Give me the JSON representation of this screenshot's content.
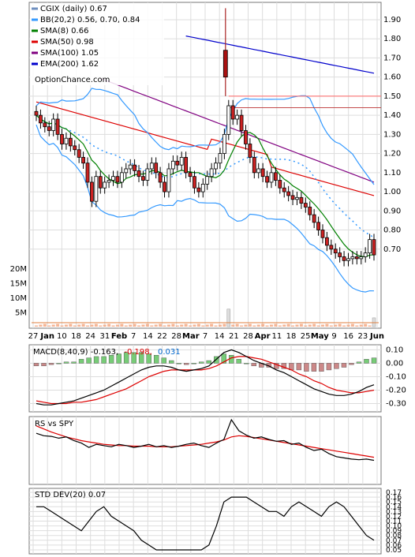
{
  "chart_data": [
    {
      "type": "candlestick",
      "title": "CGIX (daily) 0.67",
      "watermark": "OptionChance.com",
      "legend": [
        {
          "label": "CGIX (daily) 0.67",
          "color": "#6f8fbf"
        },
        {
          "label": "BB(20,2) 0.56, 0.70, 0.84",
          "color": "#3399ff"
        },
        {
          "label": "SMA(8) 0.66",
          "color": "#008000"
        },
        {
          "label": "SMA(50) 0.98",
          "color": "#dd0000"
        },
        {
          "label": "SMA(100) 1.05",
          "color": "#800080"
        },
        {
          "label": "EMA(200) 1.62",
          "color": "#0000cc"
        }
      ],
      "legend_placement": "top-left",
      "y_ticks": [
        "1.90",
        "1.80",
        "1.70",
        "1.60",
        "1.50",
        "1.40",
        "1.30",
        "1.20",
        "1.10",
        "1.00",
        "0.90",
        "0.80",
        "0.70"
      ],
      "ylim": [
        0.6,
        1.97
      ],
      "volume_ticks": [
        "20M",
        "15M",
        "10M",
        "5M"
      ],
      "x_ticks": [
        "27",
        "Jan",
        "10",
        "18",
        "24",
        "31",
        "Feb",
        "7",
        "14",
        "22",
        "28",
        "Mar",
        "7",
        "14",
        "21",
        "28",
        "Apr",
        "11",
        "18",
        "25",
        "May",
        "9",
        "16",
        "23",
        "Jun"
      ],
      "close": [
        1.4,
        1.36,
        1.34,
        1.32,
        1.38,
        1.3,
        1.25,
        1.28,
        1.24,
        1.22,
        1.18,
        1.15,
        1.05,
        0.95,
        1.08,
        1.02,
        1.05,
        1.06,
        1.08,
        1.05,
        1.1,
        1.12,
        1.14,
        1.11,
        1.08,
        1.06,
        1.12,
        1.15,
        1.1,
        1.05,
        1.0,
        1.12,
        1.16,
        1.14,
        1.18,
        1.1,
        1.08,
        1.02,
        1.0,
        1.04,
        1.08,
        1.12,
        1.15,
        1.2,
        1.3,
        1.45,
        1.38,
        1.4,
        1.32,
        1.25,
        1.18,
        1.1,
        1.12,
        1.08,
        1.05,
        1.1,
        1.06,
        1.02,
        1.0,
        0.98,
        0.96,
        0.97,
        0.94,
        0.92,
        0.88,
        0.84,
        0.8,
        0.76,
        0.72,
        0.7,
        0.68,
        0.66,
        0.64,
        0.65,
        0.66,
        0.65,
        0.66,
        0.68,
        0.75,
        0.67
      ],
      "volume_spikes_M": [
        {
          "date": "Mar 28",
          "value": 6.0
        },
        {
          "date": "Jun",
          "value": 3.0
        }
      ],
      "spike_annotation": {
        "high": 1.96,
        "low": 1.5,
        "horizontal_line_level": 1.5
      }
    },
    {
      "type": "line",
      "title": "MACD(8,40,9) -0.163, -0.198, 0.031",
      "legend": [
        {
          "label": "MACD(8,40,9) -0.163,",
          "color": "#000000"
        },
        {
          "label": "-0.198,",
          "color": "#dd0000"
        },
        {
          "label": "0.031",
          "color": "#0066cc"
        }
      ],
      "y_ticks": [
        "0.10",
        "0.00",
        "-0.10",
        "-0.20",
        "-0.30"
      ],
      "ylim": [
        -0.35,
        0.12
      ],
      "series": [
        {
          "name": "MACD",
          "values": [
            -0.3,
            -0.31,
            -0.31,
            -0.3,
            -0.29,
            -0.28,
            -0.26,
            -0.24,
            -0.22,
            -0.2,
            -0.17,
            -0.14,
            -0.11,
            -0.08,
            -0.05,
            -0.03,
            -0.02,
            -0.02,
            -0.03,
            -0.05,
            -0.06,
            -0.05,
            -0.04,
            -0.02,
            0.03,
            0.08,
            0.1,
            0.08,
            0.05,
            0.02,
            0.0,
            -0.02,
            -0.05,
            -0.07,
            -0.1,
            -0.13,
            -0.16,
            -0.19,
            -0.21,
            -0.23,
            -0.24,
            -0.24,
            -0.23,
            -0.21,
            -0.18,
            -0.16
          ]
        },
        {
          "name": "Signal",
          "values": [
            -0.28,
            -0.29,
            -0.3,
            -0.3,
            -0.3,
            -0.29,
            -0.29,
            -0.28,
            -0.27,
            -0.25,
            -0.23,
            -0.21,
            -0.19,
            -0.16,
            -0.13,
            -0.1,
            -0.08,
            -0.06,
            -0.05,
            -0.05,
            -0.05,
            -0.05,
            -0.05,
            -0.04,
            -0.02,
            0.01,
            0.04,
            0.05,
            0.05,
            0.04,
            0.03,
            0.01,
            -0.01,
            -0.03,
            -0.05,
            -0.08,
            -0.1,
            -0.13,
            -0.15,
            -0.18,
            -0.2,
            -0.21,
            -0.22,
            -0.22,
            -0.21,
            -0.2
          ]
        },
        {
          "name": "Histogram",
          "values": [
            -0.02,
            -0.02,
            -0.01,
            0.0,
            0.01,
            0.01,
            0.03,
            0.04,
            0.05,
            0.05,
            0.06,
            0.07,
            0.08,
            0.08,
            0.08,
            0.07,
            0.06,
            0.04,
            0.02,
            0.0,
            -0.01,
            0.0,
            0.01,
            0.02,
            0.05,
            0.07,
            0.06,
            0.03,
            0.0,
            -0.02,
            -0.03,
            -0.03,
            -0.04,
            -0.04,
            -0.05,
            -0.05,
            -0.06,
            -0.06,
            -0.06,
            -0.05,
            -0.04,
            -0.03,
            -0.01,
            0.01,
            0.03,
            0.04
          ]
        }
      ]
    },
    {
      "type": "line",
      "title": "RS vs SPY",
      "series": [
        {
          "name": "RS",
          "values": [
            0.78,
            0.74,
            0.73,
            0.7,
            0.72,
            0.66,
            0.62,
            0.55,
            0.6,
            0.58,
            0.56,
            0.6,
            0.58,
            0.55,
            0.57,
            0.6,
            0.56,
            0.58,
            0.55,
            0.57,
            0.6,
            0.62,
            0.58,
            0.55,
            0.62,
            0.68,
            1.0,
            0.82,
            0.75,
            0.7,
            0.72,
            0.68,
            0.65,
            0.66,
            0.6,
            0.62,
            0.55,
            0.5,
            0.52,
            0.45,
            0.4,
            0.38,
            0.36,
            0.35,
            0.36,
            0.34
          ]
        },
        {
          "name": "RS average",
          "values": [
            0.9,
            0.85,
            0.8,
            0.76,
            0.72,
            0.69,
            0.66,
            0.64,
            0.62,
            0.6,
            0.59,
            0.58,
            0.58,
            0.57,
            0.57,
            0.57,
            0.56,
            0.56,
            0.56,
            0.57,
            0.58,
            0.59,
            0.6,
            0.62,
            0.64,
            0.67,
            0.72,
            0.74,
            0.73,
            0.71,
            0.69,
            0.67,
            0.65,
            0.63,
            0.61,
            0.59,
            0.57,
            0.55,
            0.53,
            0.51,
            0.49,
            0.47,
            0.45,
            0.43,
            0.41,
            0.39
          ]
        }
      ]
    },
    {
      "type": "line",
      "title": "STD DEV(20) 0.07",
      "y_ticks": [
        "0.17",
        "0.16",
        "0.15",
        "0.14",
        "0.13",
        "0.12",
        "0.11",
        "0.10",
        "0.09",
        "0.08",
        "0.07",
        "0.06",
        "0.05"
      ],
      "ylim": [
        0.045,
        0.175
      ],
      "series": [
        {
          "name": "STD DEV(20)",
          "values": [
            0.14,
            0.14,
            0.13,
            0.12,
            0.11,
            0.1,
            0.09,
            0.11,
            0.13,
            0.14,
            0.12,
            0.11,
            0.1,
            0.09,
            0.07,
            0.06,
            0.05,
            0.05,
            0.05,
            0.05,
            0.05,
            0.05,
            0.05,
            0.06,
            0.1,
            0.15,
            0.16,
            0.16,
            0.16,
            0.15,
            0.14,
            0.13,
            0.13,
            0.12,
            0.14,
            0.15,
            0.14,
            0.13,
            0.12,
            0.14,
            0.15,
            0.14,
            0.12,
            0.1,
            0.08,
            0.07
          ]
        }
      ]
    }
  ]
}
